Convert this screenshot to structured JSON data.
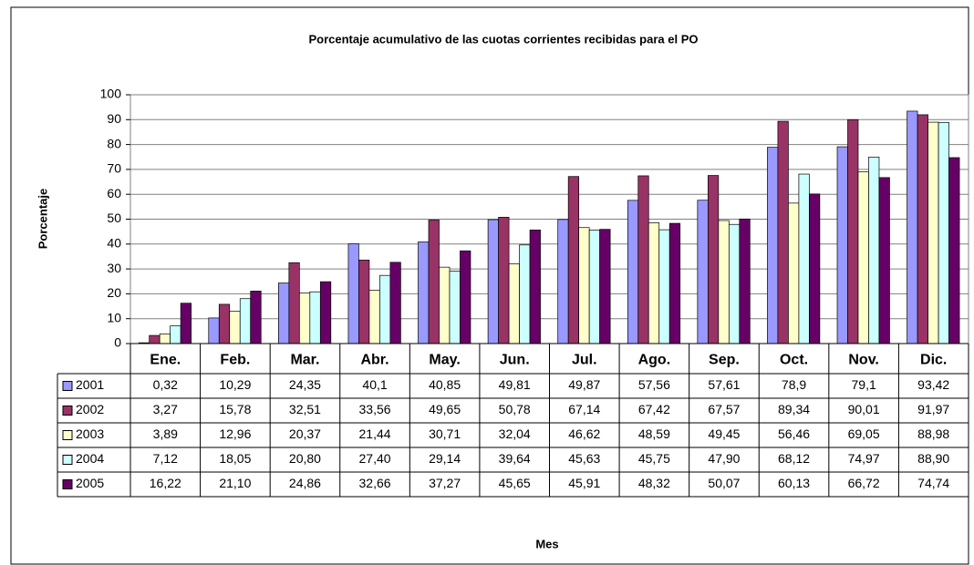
{
  "chart_data": {
    "type": "bar",
    "title": "Porcentaje acumulativo de las cuotas corrientes recibidas para el PO",
    "x_label": "Mes",
    "y_label": "Porcentaje",
    "categories": [
      "Ene.",
      "Feb.",
      "Mar.",
      "Abr.",
      "May.",
      "Jun.",
      "Jul.",
      "Ago.",
      "Sep.",
      "Oct.",
      "Nov.",
      "Dic."
    ],
    "ylim": [
      0,
      100
    ],
    "yticks": [
      0,
      10,
      20,
      30,
      40,
      50,
      60,
      70,
      80,
      90,
      100
    ],
    "grid": true,
    "series": [
      {
        "name": "2001",
        "color": "#9999ff",
        "values": [
          0.32,
          10.29,
          24.35,
          40.1,
          40.85,
          49.81,
          49.87,
          57.56,
          57.61,
          78.9,
          79.1,
          93.42
        ],
        "value_labels": [
          "0,32",
          "10,29",
          "24,35",
          "40,1",
          "40,85",
          "49,81",
          "49,87",
          "57,56",
          "57,61",
          "78,9",
          "79,1",
          "93,42"
        ]
      },
      {
        "name": "2002",
        "color": "#993366",
        "values": [
          3.27,
          15.78,
          32.51,
          33.56,
          49.65,
          50.78,
          67.14,
          67.42,
          67.57,
          89.34,
          90.01,
          91.97
        ],
        "value_labels": [
          "3,27",
          "15,78",
          "32,51",
          "33,56",
          "49,65",
          "50,78",
          "67,14",
          "67,42",
          "67,57",
          "89,34",
          "90,01",
          "91,97"
        ]
      },
      {
        "name": "2003",
        "color": "#ffffcc",
        "values": [
          3.89,
          12.96,
          20.37,
          21.44,
          30.71,
          32.04,
          46.62,
          48.59,
          49.45,
          56.46,
          69.05,
          88.98
        ],
        "value_labels": [
          "3,89",
          "12,96",
          "20,37",
          "21,44",
          "30,71",
          "32,04",
          "46,62",
          "48,59",
          "49,45",
          "56,46",
          "69,05",
          "88,98"
        ]
      },
      {
        "name": "2004",
        "color": "#ccffff",
        "values": [
          7.12,
          18.05,
          20.8,
          27.4,
          29.14,
          39.64,
          45.63,
          45.75,
          47.9,
          68.12,
          74.97,
          88.9
        ],
        "value_labels": [
          "7,12",
          "18,05",
          "20,80",
          "27,40",
          "29,14",
          "39,64",
          "45,63",
          "45,75",
          "47,90",
          "68,12",
          "74,97",
          "88,90"
        ]
      },
      {
        "name": "2005",
        "color": "#660066",
        "values": [
          16.22,
          21.1,
          24.86,
          32.66,
          37.27,
          45.65,
          45.91,
          48.32,
          50.07,
          60.13,
          66.72,
          74.74
        ],
        "value_labels": [
          "16,22",
          "21,10",
          "24,86",
          "32,66",
          "37,27",
          "45,65",
          "45,91",
          "48,32",
          "50,07",
          "60,13",
          "66,72",
          "74,74"
        ]
      }
    ]
  }
}
